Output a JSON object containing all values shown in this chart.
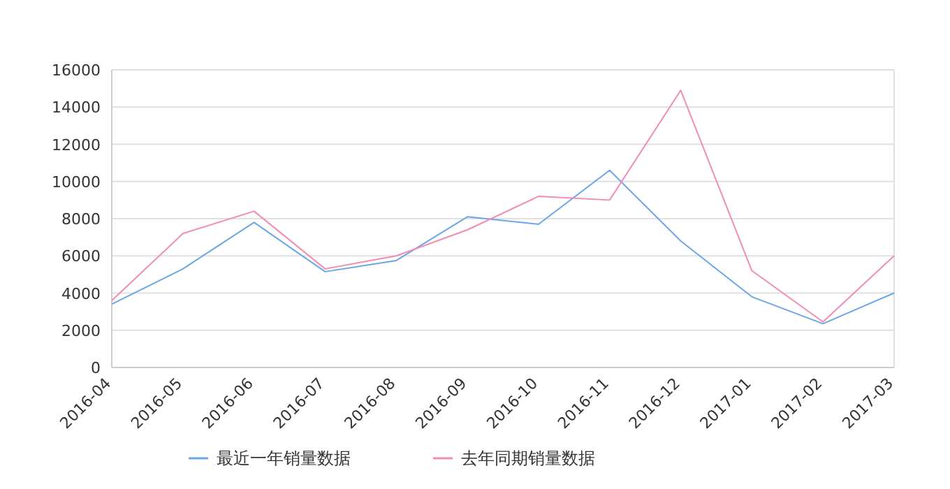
{
  "chart_data": {
    "type": "line",
    "categories": [
      "2016-04",
      "2016-05",
      "2016-06",
      "2016-07",
      "2016-08",
      "2016-09",
      "2016-10",
      "2016-11",
      "2016-12",
      "2017-01",
      "2017-02",
      "2017-03"
    ],
    "series": [
      {
        "name": "最近一年销量数据",
        "color": "#6aa6e8",
        "values": [
          3400,
          5300,
          7800,
          5150,
          5750,
          8100,
          7700,
          10600,
          6800,
          3800,
          2350,
          4000
        ]
      },
      {
        "name": "去年同期销量数据",
        "color": "#f28bb5",
        "values": [
          3600,
          7200,
          8400,
          5300,
          6000,
          7400,
          9200,
          9000,
          14900,
          5200,
          2450,
          6000
        ]
      }
    ],
    "ylim": [
      0,
      16000
    ],
    "yticks": [
      0,
      2000,
      4000,
      6000,
      8000,
      10000,
      12000,
      14000,
      16000
    ],
    "grid": "y",
    "legend": "bottom",
    "marker": "none",
    "line_style": "solid"
  }
}
